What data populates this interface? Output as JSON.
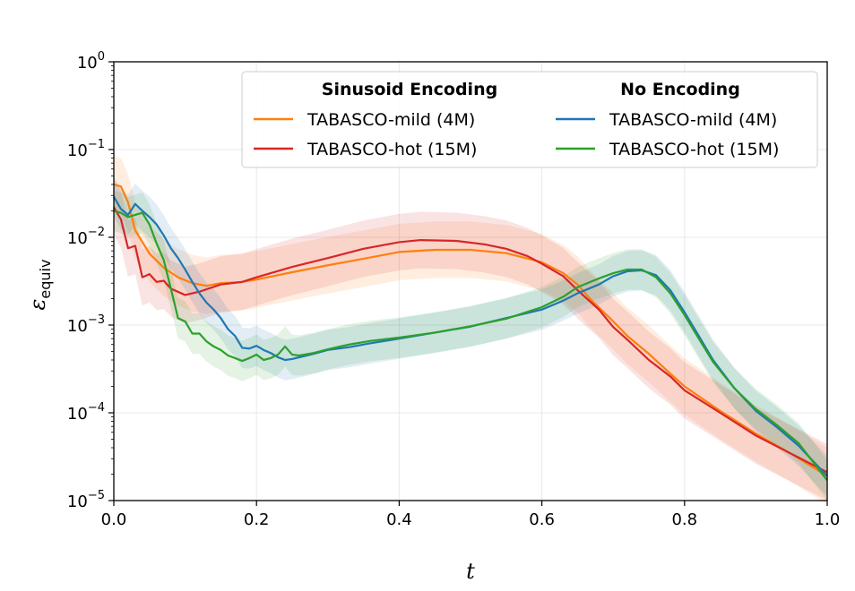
{
  "chart_data": {
    "type": "line",
    "title": "",
    "xlabel": "t",
    "ylabel": "ε",
    "ylabel_sub": "equiv",
    "xlim": [
      0.0,
      1.0
    ],
    "ylim": [
      1e-05,
      1
    ],
    "yscale": "log",
    "grid": true,
    "xticks": [
      0.0,
      0.2,
      0.4,
      0.6,
      0.8,
      1.0
    ],
    "xtick_labels": [
      "0.0",
      "0.2",
      "0.4",
      "0.6",
      "0.8",
      "1.0"
    ],
    "yticks": [
      {
        "value": 1,
        "base": "10",
        "exp": "0"
      },
      {
        "value": 0.1,
        "base": "10",
        "exp": "−1"
      },
      {
        "value": 0.01,
        "base": "10",
        "exp": "−2"
      },
      {
        "value": 0.001,
        "base": "10",
        "exp": "−3"
      },
      {
        "value": 0.0001,
        "base": "10",
        "exp": "−4"
      },
      {
        "value": 1e-05,
        "base": "10",
        "exp": "−5"
      }
    ],
    "legend": {
      "placement": "top-right",
      "groups": [
        {
          "heading": "Sinusoid Encoding",
          "entries": [
            "TABASCO-mild (4M)",
            "TABASCO-hot (15M)"
          ]
        },
        {
          "heading": "No Encoding",
          "entries": [
            "TABASCO-mild (4M)",
            "TABASCO-hot (15M)"
          ]
        }
      ]
    },
    "series": [
      {
        "name": "TABASCO-mild (4M)",
        "group": "Sinusoid Encoding",
        "color": "#ff7f0e",
        "band_spread": 2.1,
        "points": [
          [
            0.0,
            0.04
          ],
          [
            0.01,
            0.038
          ],
          [
            0.02,
            0.025
          ],
          [
            0.03,
            0.012
          ],
          [
            0.05,
            0.0065
          ],
          [
            0.07,
            0.0045
          ],
          [
            0.09,
            0.0035
          ],
          [
            0.11,
            0.003
          ],
          [
            0.13,
            0.0028
          ],
          [
            0.15,
            0.003
          ],
          [
            0.18,
            0.0031
          ],
          [
            0.2,
            0.0033
          ],
          [
            0.25,
            0.004
          ],
          [
            0.3,
            0.0048
          ],
          [
            0.35,
            0.0057
          ],
          [
            0.4,
            0.0068
          ],
          [
            0.45,
            0.0072
          ],
          [
            0.5,
            0.0072
          ],
          [
            0.55,
            0.0066
          ],
          [
            0.6,
            0.0052
          ],
          [
            0.63,
            0.0039
          ],
          [
            0.65,
            0.0029
          ],
          [
            0.67,
            0.0019
          ],
          [
            0.7,
            0.0011
          ],
          [
            0.72,
            0.00075
          ],
          [
            0.75,
            0.00047
          ],
          [
            0.78,
            0.00028
          ],
          [
            0.8,
            0.0002
          ],
          [
            0.85,
            0.000105
          ],
          [
            0.9,
            5.8e-05
          ],
          [
            0.95,
            3.4e-05
          ],
          [
            1.0,
            1.9e-05
          ]
        ]
      },
      {
        "name": "TABASCO-hot (15M)",
        "group": "Sinusoid Encoding",
        "color": "#d62728",
        "band_spread": 2.1,
        "points": [
          [
            0.0,
            0.022
          ],
          [
            0.01,
            0.016
          ],
          [
            0.02,
            0.0075
          ],
          [
            0.03,
            0.008
          ],
          [
            0.04,
            0.0035
          ],
          [
            0.05,
            0.0038
          ],
          [
            0.06,
            0.0031
          ],
          [
            0.07,
            0.0032
          ],
          [
            0.08,
            0.0026
          ],
          [
            0.1,
            0.0022
          ],
          [
            0.12,
            0.0024
          ],
          [
            0.15,
            0.0029
          ],
          [
            0.18,
            0.0031
          ],
          [
            0.2,
            0.0035
          ],
          [
            0.25,
            0.0046
          ],
          [
            0.3,
            0.0058
          ],
          [
            0.35,
            0.0074
          ],
          [
            0.4,
            0.0088
          ],
          [
            0.43,
            0.0093
          ],
          [
            0.48,
            0.0091
          ],
          [
            0.52,
            0.0083
          ],
          [
            0.55,
            0.0074
          ],
          [
            0.58,
            0.0061
          ],
          [
            0.6,
            0.005
          ],
          [
            0.63,
            0.0036
          ],
          [
            0.65,
            0.0025
          ],
          [
            0.68,
            0.0015
          ],
          [
            0.7,
            0.00095
          ],
          [
            0.72,
            0.00068
          ],
          [
            0.75,
            0.0004
          ],
          [
            0.78,
            0.00026
          ],
          [
            0.8,
            0.00018
          ],
          [
            0.85,
            0.0001
          ],
          [
            0.9,
            5.5e-05
          ],
          [
            0.95,
            3.4e-05
          ],
          [
            1.0,
            2.1e-05
          ]
        ]
      },
      {
        "name": "TABASCO-mild (4M)",
        "group": "No Encoding",
        "color": "#1f77b4",
        "band_spread": 1.7,
        "points": [
          [
            0.0,
            0.029
          ],
          [
            0.01,
            0.021
          ],
          [
            0.02,
            0.018
          ],
          [
            0.03,
            0.024
          ],
          [
            0.04,
            0.02
          ],
          [
            0.05,
            0.017
          ],
          [
            0.06,
            0.014
          ],
          [
            0.07,
            0.0105
          ],
          [
            0.08,
            0.0075
          ],
          [
            0.09,
            0.0058
          ],
          [
            0.1,
            0.0043
          ],
          [
            0.11,
            0.0031
          ],
          [
            0.12,
            0.0023
          ],
          [
            0.13,
            0.0018
          ],
          [
            0.14,
            0.0015
          ],
          [
            0.15,
            0.0012
          ],
          [
            0.16,
            0.0009
          ],
          [
            0.17,
            0.00075
          ],
          [
            0.18,
            0.00055
          ],
          [
            0.19,
            0.00054
          ],
          [
            0.2,
            0.00058
          ],
          [
            0.21,
            0.00052
          ],
          [
            0.22,
            0.00048
          ],
          [
            0.23,
            0.00043
          ],
          [
            0.24,
            0.0004
          ],
          [
            0.25,
            0.00041
          ],
          [
            0.28,
            0.00047
          ],
          [
            0.3,
            0.00052
          ],
          [
            0.33,
            0.00056
          ],
          [
            0.36,
            0.00062
          ],
          [
            0.4,
            0.0007
          ],
          [
            0.45,
            0.00082
          ],
          [
            0.5,
            0.00096
          ],
          [
            0.55,
            0.0012
          ],
          [
            0.6,
            0.0015
          ],
          [
            0.63,
            0.0019
          ],
          [
            0.65,
            0.0023
          ],
          [
            0.68,
            0.0029
          ],
          [
            0.7,
            0.0036
          ],
          [
            0.72,
            0.0041
          ],
          [
            0.74,
            0.0042
          ],
          [
            0.76,
            0.0037
          ],
          [
            0.78,
            0.0025
          ],
          [
            0.8,
            0.0014
          ],
          [
            0.82,
            0.00075
          ],
          [
            0.84,
            0.0004
          ],
          [
            0.87,
            0.00019
          ],
          [
            0.9,
            0.000105
          ],
          [
            0.93,
            6.8e-05
          ],
          [
            0.96,
            4.2e-05
          ],
          [
            1.0,
            1.9e-05
          ]
        ]
      },
      {
        "name": "TABASCO-hot (15M)",
        "group": "No Encoding",
        "color": "#2ca02c",
        "band_spread": 1.7,
        "points": [
          [
            0.0,
            0.02
          ],
          [
            0.01,
            0.019
          ],
          [
            0.02,
            0.017
          ],
          [
            0.03,
            0.018
          ],
          [
            0.04,
            0.019
          ],
          [
            0.05,
            0.014
          ],
          [
            0.06,
            0.0085
          ],
          [
            0.07,
            0.0055
          ],
          [
            0.08,
            0.0026
          ],
          [
            0.09,
            0.0012
          ],
          [
            0.1,
            0.0011
          ],
          [
            0.11,
            0.0008
          ],
          [
            0.12,
            0.0008
          ],
          [
            0.13,
            0.00065
          ],
          [
            0.14,
            0.00057
          ],
          [
            0.15,
            0.00052
          ],
          [
            0.16,
            0.00045
          ],
          [
            0.17,
            0.00042
          ],
          [
            0.18,
            0.00039
          ],
          [
            0.19,
            0.00042
          ],
          [
            0.2,
            0.00046
          ],
          [
            0.21,
            0.0004
          ],
          [
            0.22,
            0.00042
          ],
          [
            0.23,
            0.00046
          ],
          [
            0.24,
            0.00057
          ],
          [
            0.25,
            0.00046
          ],
          [
            0.26,
            0.00045
          ],
          [
            0.28,
            0.00048
          ],
          [
            0.3,
            0.00053
          ],
          [
            0.33,
            0.0006
          ],
          [
            0.36,
            0.00066
          ],
          [
            0.4,
            0.00072
          ],
          [
            0.45,
            0.00082
          ],
          [
            0.5,
            0.00097
          ],
          [
            0.55,
            0.00118
          ],
          [
            0.6,
            0.0016
          ],
          [
            0.63,
            0.0021
          ],
          [
            0.65,
            0.0027
          ],
          [
            0.68,
            0.0034
          ],
          [
            0.7,
            0.0039
          ],
          [
            0.72,
            0.0043
          ],
          [
            0.74,
            0.0043
          ],
          [
            0.76,
            0.0035
          ],
          [
            0.78,
            0.0023
          ],
          [
            0.8,
            0.0013
          ],
          [
            0.82,
            0.0007
          ],
          [
            0.84,
            0.00038
          ],
          [
            0.87,
            0.00019
          ],
          [
            0.9,
            0.00011
          ],
          [
            0.93,
            7.2e-05
          ],
          [
            0.96,
            4.5e-05
          ],
          [
            1.0,
            1.7e-05
          ]
        ]
      }
    ]
  }
}
